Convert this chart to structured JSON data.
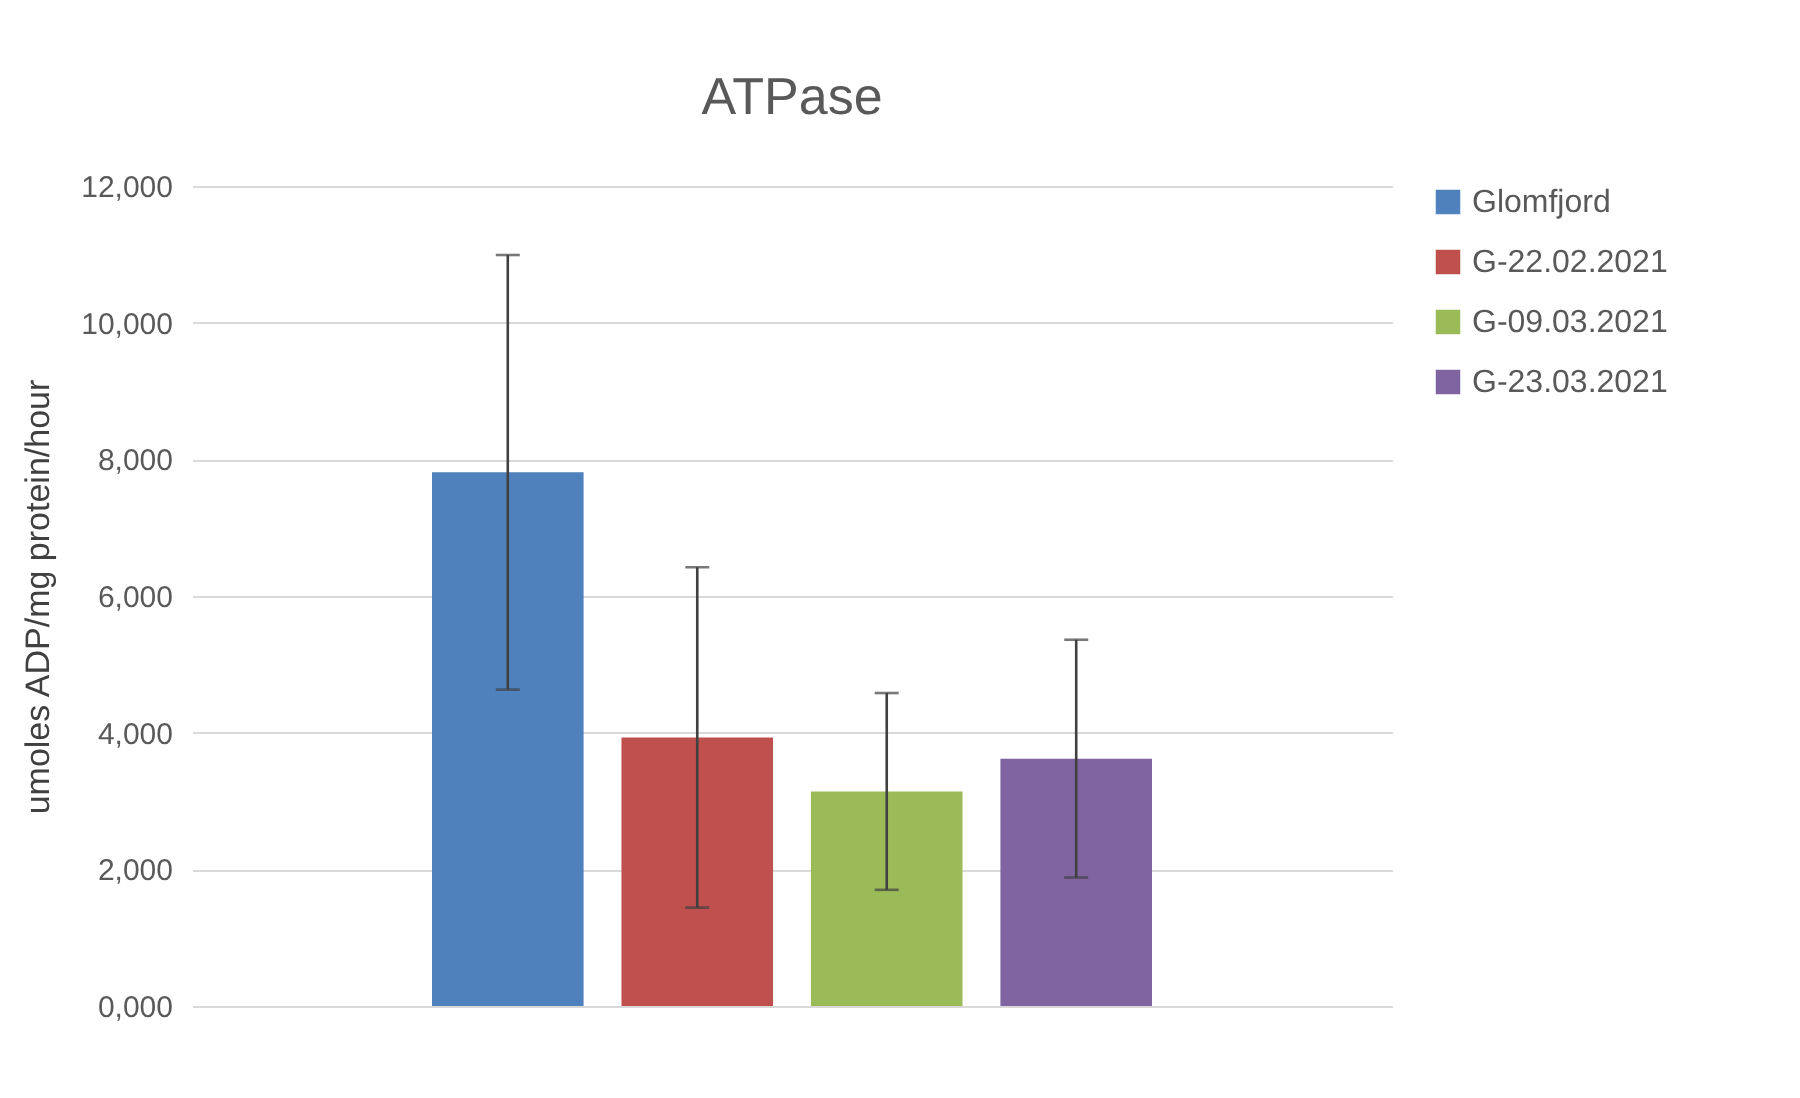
{
  "chart_data": {
    "type": "bar",
    "title": "ATPase",
    "ylabel": "umoles ADP/mg protein/hour",
    "categories": [
      null
    ],
    "series": [
      {
        "name": "Glomfjord",
        "color": "#4f81bd",
        "values": [
          7810
        ],
        "errors": [
          3180
        ]
      },
      {
        "name": "G-22.02.2021",
        "color": "#c0504d",
        "values": [
          3930
        ],
        "errors": [
          2490
        ]
      },
      {
        "name": "G-09.03.2021",
        "color": "#9bbb59",
        "values": [
          3140
        ],
        "errors": [
          1440
        ]
      },
      {
        "name": "G-23.03.2021",
        "color": "#8064a2",
        "values": [
          3620
        ],
        "errors": [
          1740
        ]
      }
    ],
    "ylim": [
      0,
      12000
    ],
    "yticks": [
      {
        "value": 0,
        "label": "0,000"
      },
      {
        "value": 2000,
        "label": "2,000"
      },
      {
        "value": 4000,
        "label": "4,000"
      },
      {
        "value": 6000,
        "label": "6,000"
      },
      {
        "value": 8000,
        "label": "8,000"
      },
      {
        "value": 10000,
        "label": "10,000"
      },
      {
        "value": 12000,
        "label": "12,000"
      }
    ],
    "grid": "y",
    "legend": "right"
  }
}
